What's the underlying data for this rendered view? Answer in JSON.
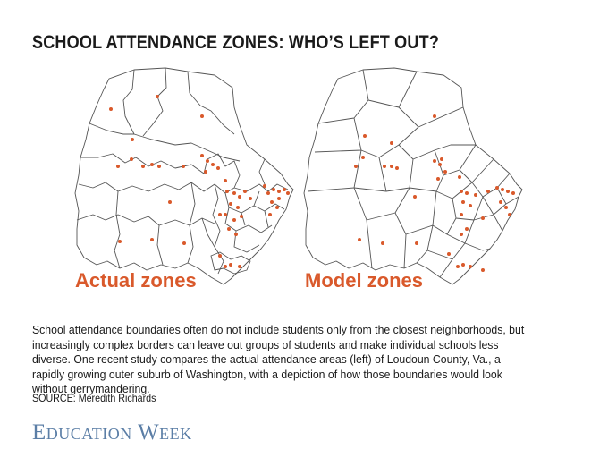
{
  "title": "SCHOOL ATTENDANCE ZONES: WHO’S LEFT OUT?",
  "maps": [
    {
      "label": "Actual zones"
    },
    {
      "label": "Model zones"
    }
  ],
  "caption": "School attendance boundaries often do not include students only from the closest neighborhoods, but increasingly complex borders can leave out groups of students and make individual schools less diverse. One recent study compares the actual attendance areas (left) of Loudoun County, Va., a rapidly growing outer suburb of Washington, with a depiction of how those boundaries would look without gerrymandering.",
  "source": "SOURCE: Meredith Richards",
  "logo": "Education Week",
  "colors": {
    "accent": "#d9592b",
    "logo": "#5b7ea6",
    "boundary": "#555555"
  }
}
